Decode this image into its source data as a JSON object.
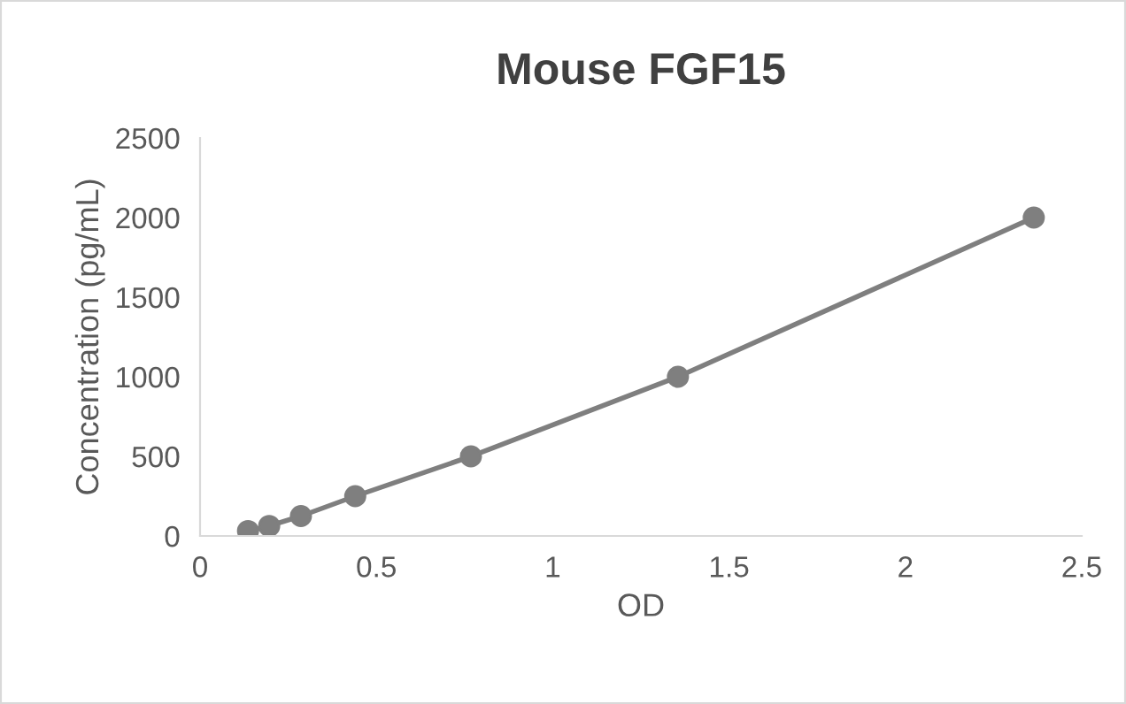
{
  "chart_data": {
    "type": "line",
    "title": "Mouse FGF15",
    "xlabel": "OD",
    "ylabel": "Concentration (pg/mL)",
    "x": [
      0.136,
      0.196,
      0.286,
      0.44,
      0.768,
      1.355,
      2.364
    ],
    "series": [
      {
        "color": "#7f7f7f",
        "values": [
          31,
          63,
          125,
          250,
          500,
          1000,
          2000
        ]
      }
    ],
    "xlim": [
      0,
      2.5
    ],
    "xticks": [
      0,
      0.5,
      1,
      1.5,
      2,
      2.5
    ],
    "ylim": [
      0,
      2500
    ],
    "yticks": [
      0,
      500,
      1000,
      1500,
      2000,
      2500
    ],
    "marker": "circle",
    "line_style": "solid",
    "grid": false,
    "legend": false
  }
}
